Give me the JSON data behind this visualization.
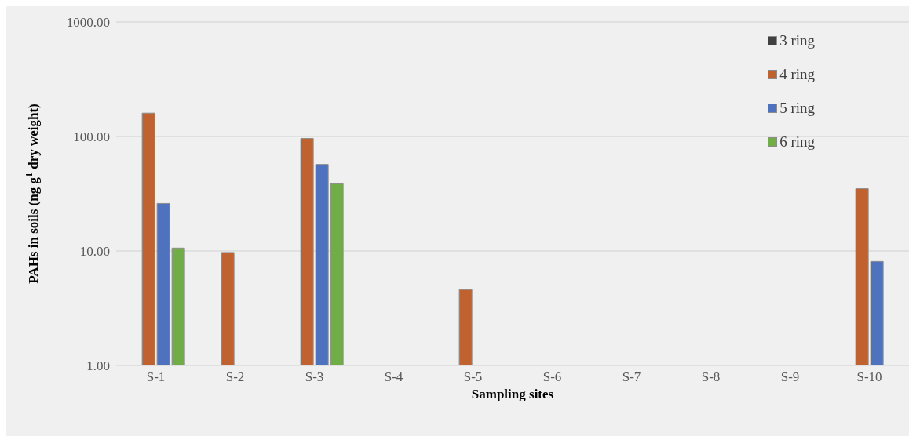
{
  "chart_data": {
    "type": "bar",
    "xlabel": "Sampling sites",
    "ylabel": "PAHs in soils (ng g$^{1}$ dry weight)",
    "categories": [
      "S-1",
      "S-2",
      "S-3",
      "S-4",
      "S-5",
      "S-6",
      "S-7",
      "S-8",
      "S-9",
      "S-10"
    ],
    "series": [
      {
        "name": "3 ring",
        "color": "#404040",
        "values": [
          null,
          null,
          null,
          null,
          null,
          null,
          null,
          null,
          null,
          null
        ]
      },
      {
        "name": "4 ring",
        "color": "#c0622f",
        "values": [
          160,
          9.7,
          96,
          null,
          4.6,
          null,
          null,
          null,
          null,
          35
        ]
      },
      {
        "name": "5 ring",
        "color": "#4f72be",
        "values": [
          26,
          null,
          57,
          null,
          null,
          null,
          null,
          null,
          null,
          8.1
        ]
      },
      {
        "name": "6 ring",
        "color": "#70ad47",
        "values": [
          10.6,
          null,
          38.6,
          null,
          null,
          null,
          null,
          null,
          null,
          null
        ]
      }
    ],
    "log": true,
    "ylim": [
      1,
      1000
    ],
    "yticks": [
      {
        "value": 1,
        "label": "1.00"
      },
      {
        "value": 10,
        "label": "10.00"
      },
      {
        "value": 100,
        "label": "100.00"
      },
      {
        "value": 1000,
        "label": "1000.00"
      }
    ],
    "grid": "y",
    "legend": "top right"
  }
}
